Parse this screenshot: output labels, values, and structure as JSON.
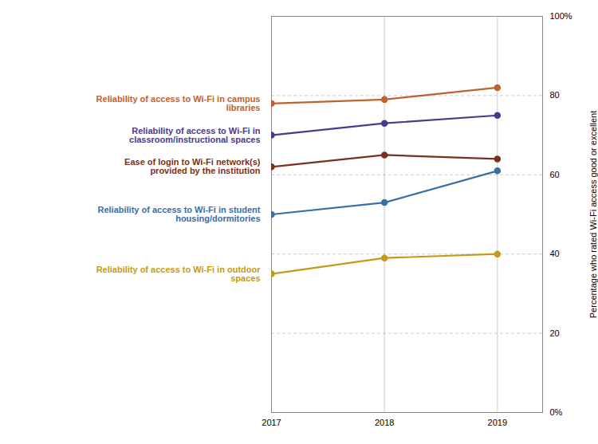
{
  "chart_data": {
    "type": "line",
    "x": [
      2017,
      2018,
      2019
    ],
    "series": [
      {
        "name": "Reliability of access to Wi-Fi in campus\nlibraries",
        "color": "#C0622D",
        "values": [
          78,
          79,
          82
        ]
      },
      {
        "name": "Reliability of access to Wi-Fi in\nclassroom/instructional spaces",
        "color": "#4B3A8C",
        "values": [
          70,
          73,
          75
        ]
      },
      {
        "name": "Ease of login to Wi-Fi network(s)\nprovided by the institution",
        "color": "#7B3020",
        "values": [
          62,
          65,
          64
        ]
      },
      {
        "name": "Reliability of access to Wi-Fi in student\nhousing/dormitories",
        "color": "#3A6EA5",
        "values": [
          50,
          53,
          61
        ]
      },
      {
        "name": "Reliability of access to Wi-Fi in outdoor\nspaces",
        "color": "#C49A1A",
        "values": [
          35,
          39,
          40
        ]
      }
    ],
    "xlim": [
      2017,
      2019.4
    ],
    "xticks": [
      2017,
      2018,
      2019
    ],
    "ylim": [
      0,
      100
    ],
    "yticks": [
      {
        "value": 0,
        "label": "0%"
      },
      20,
      40,
      60,
      80,
      {
        "value": 100,
        "label": "100%"
      }
    ],
    "ylabel": "Percentage who rated Wi-Fi access good or excellent",
    "grid": true,
    "marker": "circle"
  }
}
